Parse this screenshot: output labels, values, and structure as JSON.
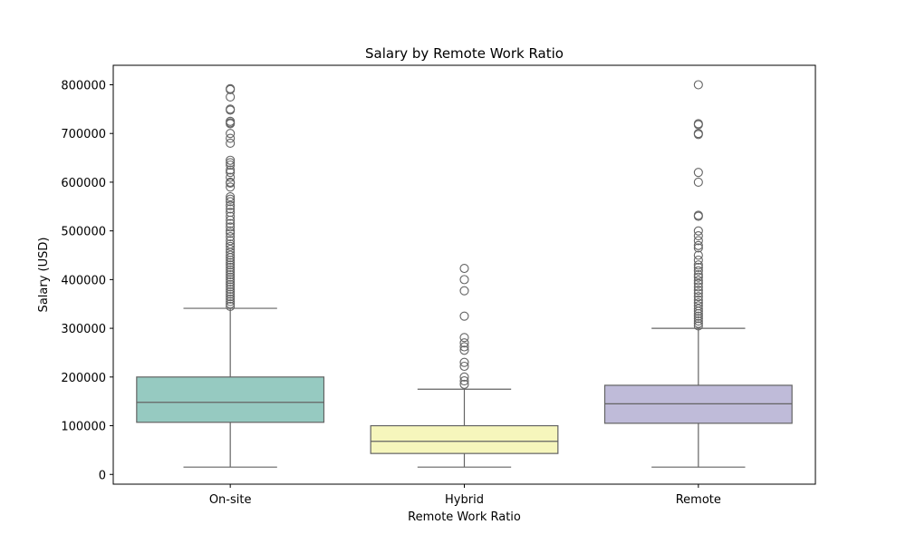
{
  "chart_data": {
    "type": "box",
    "title": "Salary by Remote Work Ratio",
    "xlabel": "Remote Work Ratio",
    "ylabel": "Salary (USD)",
    "ylim": [
      -20000,
      840000
    ],
    "yticks": [
      0,
      100000,
      200000,
      300000,
      400000,
      500000,
      600000,
      700000,
      800000
    ],
    "yticklabels": [
      "0",
      "100000",
      "200000",
      "300000",
      "400000",
      "500000",
      "600000",
      "700000",
      "800000"
    ],
    "grid": false,
    "categories": [
      "On-site",
      "Hybrid",
      "Remote"
    ],
    "series": [
      {
        "category": "On-site",
        "color": "#96cac1",
        "min": 15000,
        "q1": 107000,
        "median": 148000,
        "q3": 200000,
        "whisker_high": 341000,
        "outliers": [
          792000,
          790000,
          775000,
          750000,
          748000,
          725000,
          722000,
          720000,
          700000,
          690000,
          680000,
          645000,
          640000,
          635000,
          625000,
          620000,
          610000,
          600000,
          598000,
          590000,
          570000,
          565000,
          560000,
          552000,
          545000,
          538000,
          530000,
          522000,
          515000,
          508000,
          500000,
          495000,
          488000,
          480000,
          473000,
          468000,
          462000,
          456000,
          450000,
          445000,
          440000,
          435000,
          430000,
          425000,
          420000,
          415000,
          410000,
          405000,
          400000,
          395000,
          390000,
          385000,
          380000,
          375000,
          370000,
          365000,
          360000,
          355000,
          350000,
          345000
        ]
      },
      {
        "category": "Hybrid",
        "color": "#f6f6bc",
        "min": 15000,
        "q1": 43000,
        "median": 68000,
        "q3": 100000,
        "whisker_high": 175000,
        "outliers": [
          423000,
          400000,
          377000,
          325000,
          281000,
          270000,
          262000,
          255000,
          230000,
          222000,
          200000,
          192000,
          185000
        ]
      },
      {
        "category": "Remote",
        "color": "#bfbbd9",
        "min": 15000,
        "q1": 105000,
        "median": 145000,
        "q3": 183000,
        "whisker_high": 300000,
        "outliers": [
          800000,
          720000,
          718000,
          700000,
          698000,
          620000,
          600000,
          532000,
          530000,
          500000,
          490000,
          480000,
          470000,
          465000,
          450000,
          440000,
          430000,
          425000,
          418000,
          410000,
          405000,
          398000,
          392000,
          385000,
          378000,
          372000,
          365000,
          358000,
          352000,
          346000,
          340000,
          335000,
          330000,
          325000,
          320000,
          315000,
          310000,
          305000
        ]
      }
    ]
  }
}
